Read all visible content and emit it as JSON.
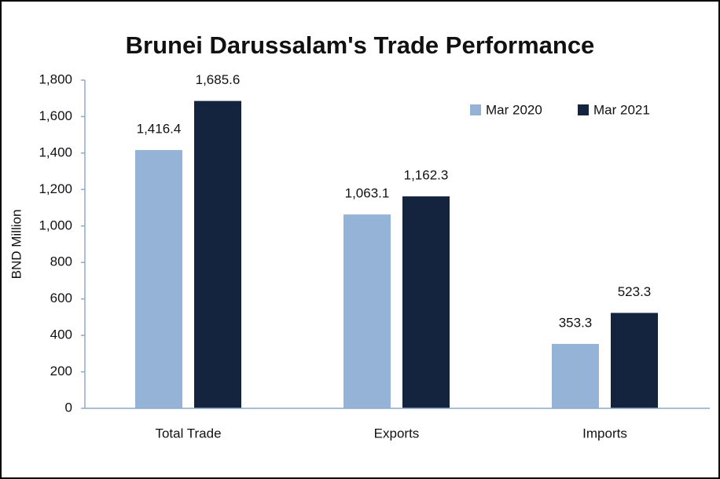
{
  "chart_data": {
    "type": "bar",
    "title": "Brunei Darussalam's Trade Performance",
    "y_label": "BND Million",
    "categories": [
      "Total Trade",
      "Exports",
      "Imports"
    ],
    "series": [
      {
        "name": "Mar 2020",
        "color": "#95b3d7",
        "values": [
          1416.4,
          1063.1,
          353.3
        ],
        "value_labels": [
          "1,416.4",
          "1,063.1",
          "353.3"
        ]
      },
      {
        "name": "Mar 2021",
        "color": "#14243f",
        "values": [
          1685.6,
          1162.3,
          523.3
        ],
        "value_labels": [
          "1,685.6",
          "1,162.3",
          "523.3"
        ]
      }
    ],
    "ylim": [
      0,
      1800
    ],
    "yticks": [
      0,
      200,
      400,
      600,
      800,
      {
        "value": 1000,
        "label": "1,000"
      },
      {
        "value": 1200,
        "label": "1,200"
      },
      {
        "value": 1400,
        "label": "1,400"
      },
      {
        "value": 1600,
        "label": "1,600"
      },
      {
        "value": 1800,
        "label": "1,800"
      }
    ],
    "grid": false,
    "legend": "top-right"
  }
}
